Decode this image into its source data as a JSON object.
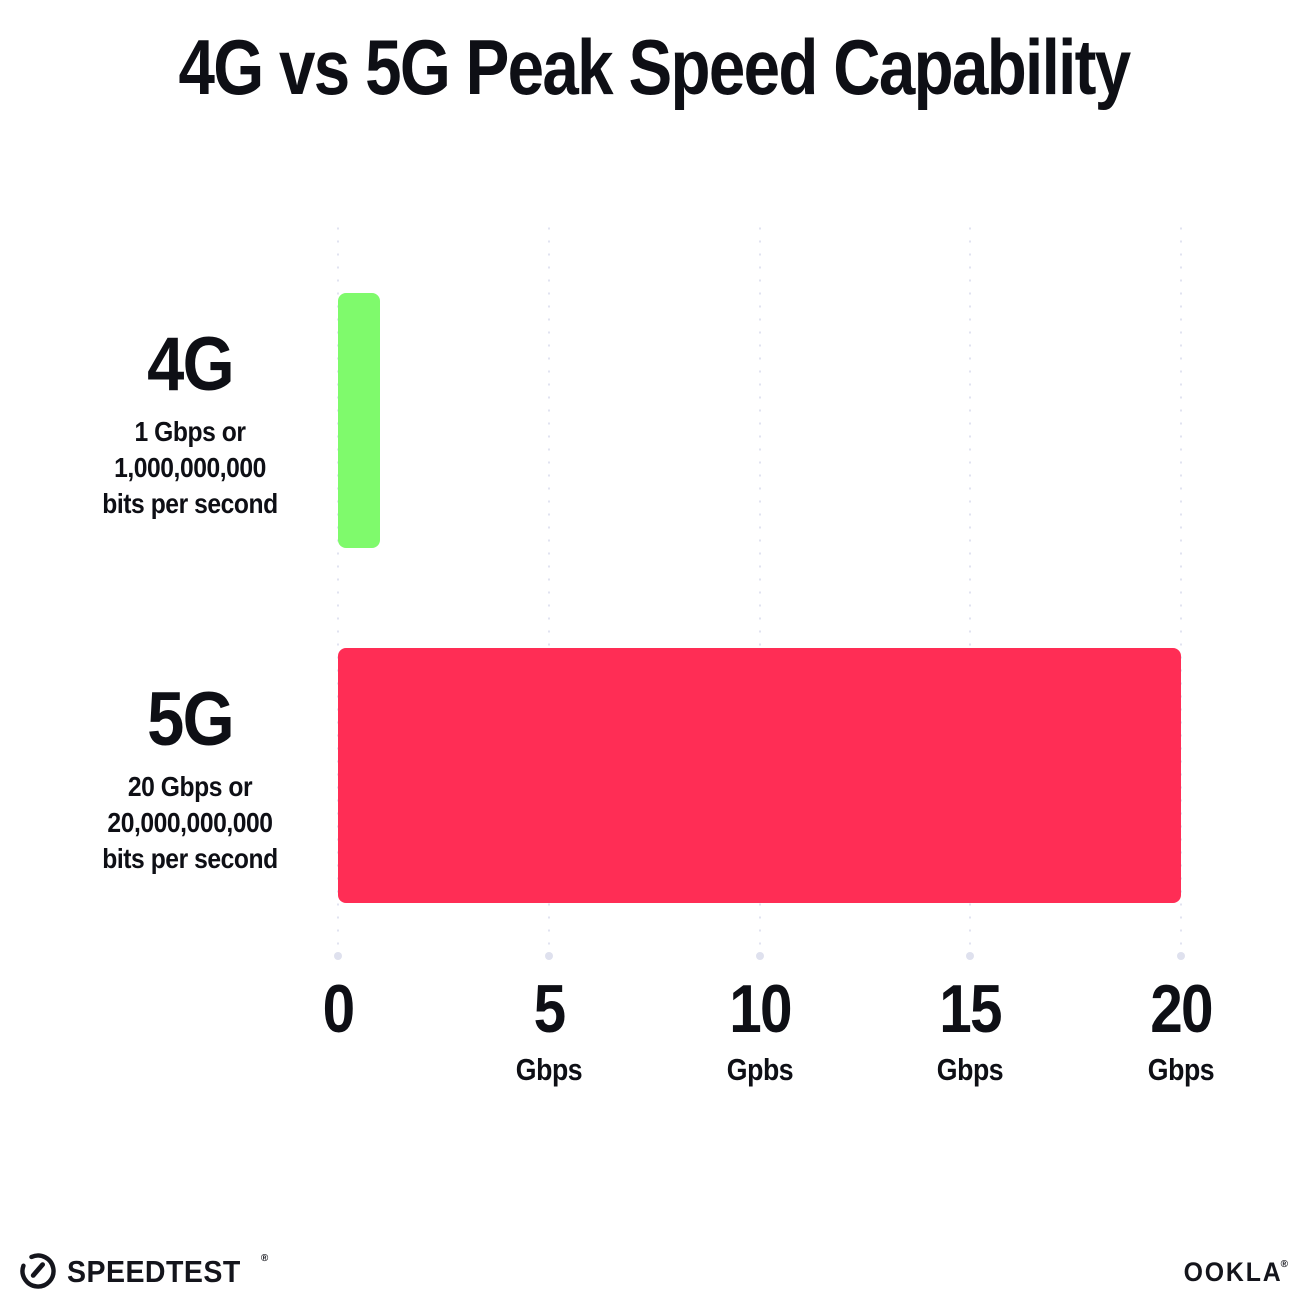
{
  "title": "4G vs 5G Peak Speed Capability",
  "chart_data": {
    "type": "bar",
    "orientation": "horizontal",
    "title": "4G vs 5G Peak Speed Capability",
    "categories": [
      "4G",
      "5G"
    ],
    "values": [
      1,
      20
    ],
    "xlim": [
      0,
      20
    ],
    "x_unit": "Gbps",
    "grid": "dotted vertical gridlines at each x tick, light gray",
    "legend": "none",
    "rows": [
      {
        "label": "4G",
        "value": 1,
        "color": "#7FFA6C",
        "sublabel": [
          "1 Gbps or",
          "1,000,000,000",
          "bits per second"
        ]
      },
      {
        "label": "5G",
        "value": 20,
        "color": "#FF2D55",
        "sublabel": [
          "20 Gbps or",
          "20,000,000,000",
          "bits per second"
        ]
      }
    ],
    "x_ticks": [
      {
        "value": "0",
        "unit": ""
      },
      {
        "value": "5",
        "unit": "Gbps"
      },
      {
        "value": "10",
        "unit": "Gpbs"
      },
      {
        "value": "15",
        "unit": "Gbps"
      },
      {
        "value": "20",
        "unit": "Gbps"
      }
    ]
  },
  "colors": {
    "bar_4g": "#7FFA6C",
    "bar_5g": "#FF2D55",
    "gridline": "#E1E3F0",
    "text": "#0E0F15",
    "background": "#FFFFFF"
  },
  "footer": {
    "speedtest_label": "SPEEDTEST",
    "speedtest_reg_mark": "®",
    "ookla_label": "OOKLA",
    "ookla_reg_mark": "®"
  }
}
